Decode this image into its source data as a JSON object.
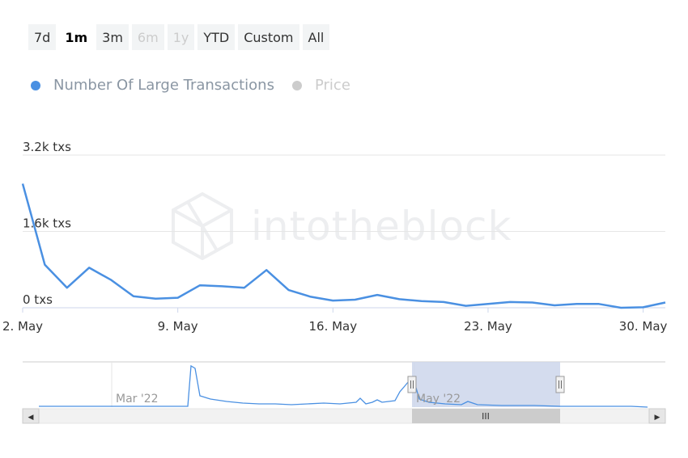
{
  "range_selector": {
    "buttons": [
      {
        "label": "7d",
        "state": "normal"
      },
      {
        "label": "1m",
        "state": "active"
      },
      {
        "label": "3m",
        "state": "normal"
      },
      {
        "label": "6m",
        "state": "disabled"
      },
      {
        "label": "1y",
        "state": "disabled"
      },
      {
        "label": "YTD",
        "state": "normal"
      },
      {
        "label": "Custom",
        "state": "normal"
      },
      {
        "label": "All",
        "state": "normal"
      }
    ]
  },
  "legend": {
    "items": [
      {
        "label": "Number Of Large Transactions",
        "color": "#4a90e2",
        "enabled": true
      },
      {
        "label": "Price",
        "color": "#cccccc",
        "enabled": false
      }
    ]
  },
  "watermark": {
    "text": "intotheblock"
  },
  "navigator": {
    "labels": [
      "Mar '22",
      "May '22"
    ],
    "scroll_handle_glyph": "III",
    "left_arrow": "◀",
    "right_arrow": "▶"
  },
  "colors": {
    "line": "#4a90e2",
    "grid": "#e6e6e6",
    "nav_selection": "#ccd6eb",
    "text": "#333333",
    "legend_inactive": "#cccccc",
    "legend_active_text": "#8a96a3"
  },
  "chart_data": {
    "type": "line",
    "title": "",
    "xlabel": "",
    "ylabel": "",
    "x_ticks": [
      "2. May",
      "9. May",
      "16. May",
      "23. May",
      "30. May"
    ],
    "y_ticks": [
      "0 txs",
      "1.6k txs",
      "3.2k txs"
    ],
    "ylim": [
      0,
      3200
    ],
    "xlim": [
      "2022-05-02",
      "2022-05-31"
    ],
    "grid": true,
    "legend_position": "top-left",
    "series": [
      {
        "name": "Number Of Large Transactions",
        "x": [
          "2022-05-02",
          "2022-05-03",
          "2022-05-04",
          "2022-05-05",
          "2022-05-06",
          "2022-05-07",
          "2022-05-08",
          "2022-05-09",
          "2022-05-10",
          "2022-05-11",
          "2022-05-12",
          "2022-05-13",
          "2022-05-14",
          "2022-05-15",
          "2022-05-16",
          "2022-05-17",
          "2022-05-18",
          "2022-05-19",
          "2022-05-20",
          "2022-05-21",
          "2022-05-22",
          "2022-05-23",
          "2022-05-24",
          "2022-05-25",
          "2022-05-26",
          "2022-05-27",
          "2022-05-28",
          "2022-05-29",
          "2022-05-30",
          "2022-05-31"
        ],
        "values": [
          2600,
          900,
          420,
          840,
          580,
          240,
          190,
          210,
          470,
          450,
          420,
          790,
          370,
          230,
          150,
          170,
          270,
          180,
          140,
          120,
          40,
          80,
          120,
          110,
          50,
          80,
          80,
          0,
          10,
          110
        ]
      }
    ]
  }
}
